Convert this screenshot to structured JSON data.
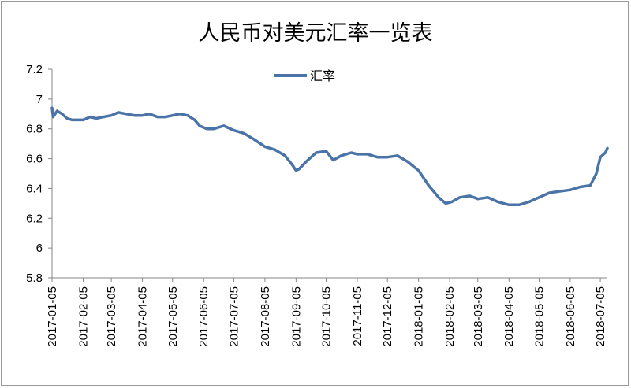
{
  "chart_data": {
    "type": "line",
    "title": "人民币对美元汇率一览表",
    "xlabel": "",
    "ylabel": "",
    "ylim": [
      5.8,
      7.2
    ],
    "yticks": [
      5.8,
      6,
      6.2,
      6.4,
      6.6,
      6.8,
      7,
      7.2
    ],
    "ytick_labels": [
      "5.8",
      "6",
      "6.2",
      "6.4",
      "6.6",
      "6.8",
      "7",
      "7.2"
    ],
    "xlim": [
      "2017-01-05",
      "2018-07-12"
    ],
    "xticks": [
      "2017-01-05",
      "2017-02-05",
      "2017-03-05",
      "2017-04-05",
      "2017-05-05",
      "2017-06-05",
      "2017-07-05",
      "2017-08-05",
      "2017-09-05",
      "2017-10-05",
      "2017-11-05",
      "2017-12-05",
      "2018-01-05",
      "2018-02-05",
      "2018-03-05",
      "2018-04-05",
      "2018-05-05",
      "2018-06-05",
      "2018-07-05"
    ],
    "grid": false,
    "legend": "top-center",
    "series": [
      {
        "name": "汇率",
        "color": "#4a73a8",
        "x": [
          "2017-01-05",
          "2017-01-06",
          "2017-01-10",
          "2017-01-15",
          "2017-01-20",
          "2017-01-25",
          "2017-02-05",
          "2017-02-12",
          "2017-02-18",
          "2017-02-25",
          "2017-03-05",
          "2017-03-12",
          "2017-03-20",
          "2017-03-28",
          "2017-04-05",
          "2017-04-12",
          "2017-04-20",
          "2017-04-28",
          "2017-05-05",
          "2017-05-12",
          "2017-05-20",
          "2017-05-27",
          "2017-06-01",
          "2017-06-08",
          "2017-06-15",
          "2017-06-25",
          "2017-07-05",
          "2017-07-15",
          "2017-07-25",
          "2017-08-05",
          "2017-08-15",
          "2017-08-25",
          "2017-09-01",
          "2017-09-05",
          "2017-09-08",
          "2017-09-15",
          "2017-09-25",
          "2017-10-05",
          "2017-10-12",
          "2017-10-20",
          "2017-10-30",
          "2017-11-05",
          "2017-11-15",
          "2017-11-25",
          "2017-12-05",
          "2017-12-15",
          "2017-12-25",
          "2018-01-05",
          "2018-01-15",
          "2018-01-25",
          "2018-02-01",
          "2018-02-07",
          "2018-02-15",
          "2018-02-25",
          "2018-03-05",
          "2018-03-15",
          "2018-03-25",
          "2018-04-05",
          "2018-04-15",
          "2018-04-25",
          "2018-05-05",
          "2018-05-15",
          "2018-05-25",
          "2018-06-05",
          "2018-06-15",
          "2018-06-25",
          "2018-07-01",
          "2018-07-05",
          "2018-07-10",
          "2018-07-12"
        ],
        "y": [
          6.94,
          6.88,
          6.92,
          6.9,
          6.87,
          6.86,
          6.86,
          6.88,
          6.87,
          6.88,
          6.89,
          6.91,
          6.9,
          6.89,
          6.89,
          6.9,
          6.88,
          6.88,
          6.89,
          6.9,
          6.89,
          6.86,
          6.82,
          6.8,
          6.8,
          6.82,
          6.79,
          6.77,
          6.73,
          6.68,
          6.66,
          6.62,
          6.56,
          6.52,
          6.53,
          6.58,
          6.64,
          6.65,
          6.59,
          6.62,
          6.64,
          6.63,
          6.63,
          6.61,
          6.61,
          6.62,
          6.58,
          6.52,
          6.42,
          6.34,
          6.3,
          6.31,
          6.34,
          6.35,
          6.33,
          6.34,
          6.31,
          6.29,
          6.29,
          6.31,
          6.34,
          6.37,
          6.38,
          6.39,
          6.41,
          6.42,
          6.5,
          6.61,
          6.64,
          6.67
        ]
      }
    ]
  }
}
